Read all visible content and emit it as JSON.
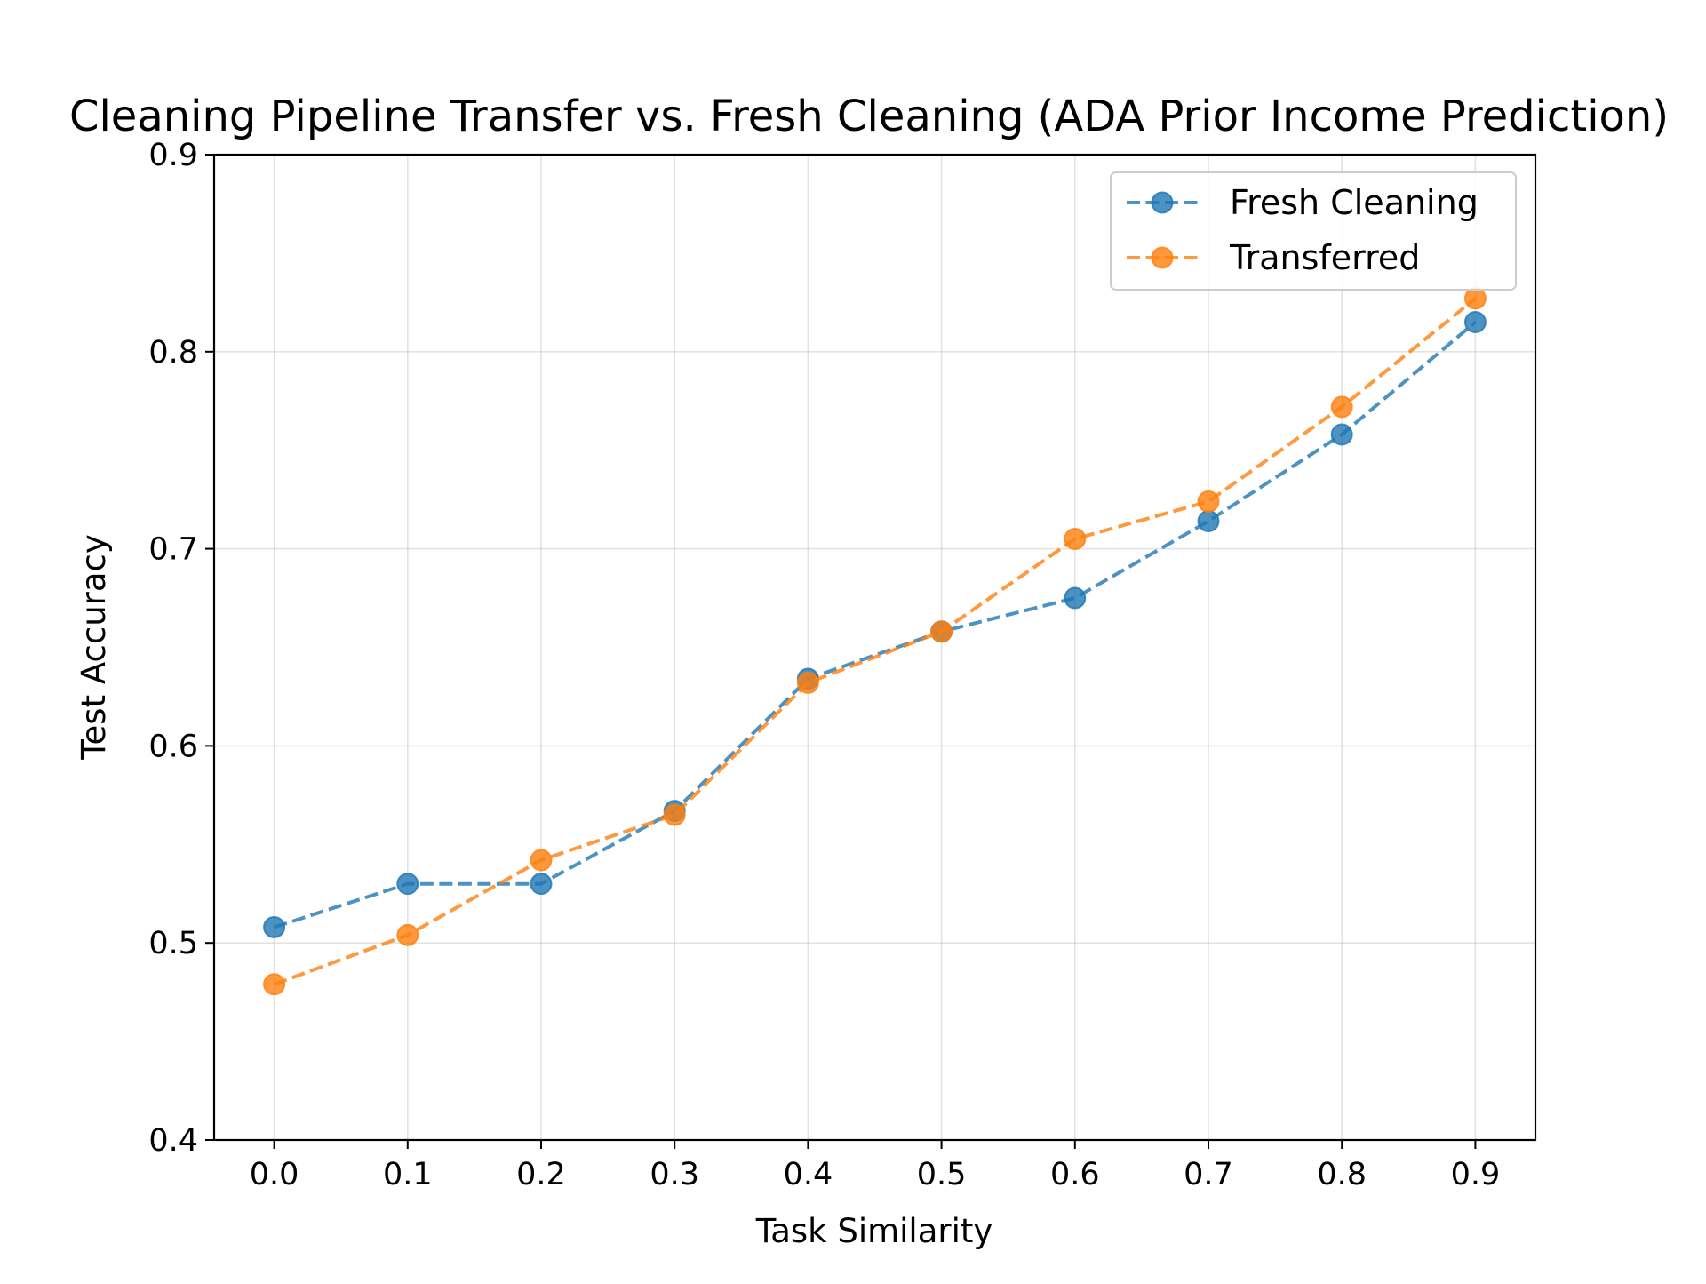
{
  "chart_data": {
    "type": "line",
    "title": "Cleaning Pipeline Transfer vs. Fresh Cleaning (ADA Prior Income Prediction)",
    "xlabel": "Task Similarity",
    "ylabel": "Test Accuracy",
    "x": [
      0.0,
      0.1,
      0.2,
      0.3,
      0.4,
      0.5,
      0.6,
      0.7,
      0.8,
      0.9
    ],
    "x_tick_labels": [
      "0.0",
      "0.1",
      "0.2",
      "0.3",
      "0.4",
      "0.5",
      "0.6",
      "0.7",
      "0.8",
      "0.9"
    ],
    "y_tick_labels": [
      "0.4",
      "0.5",
      "0.6",
      "0.7",
      "0.8",
      "0.9"
    ],
    "y_ticks": [
      0.4,
      0.5,
      0.6,
      0.7,
      0.8,
      0.9
    ],
    "xlim": [
      -0.045,
      0.945
    ],
    "ylim": [
      0.4,
      0.9
    ],
    "grid": true,
    "legend_position": "top-right",
    "series": [
      {
        "name": "Fresh Cleaning",
        "color": "#1f77b4",
        "line_style": "dashed",
        "marker": "circle",
        "values": [
          0.508,
          0.53,
          0.53,
          0.567,
          0.634,
          0.658,
          0.675,
          0.714,
          0.758,
          0.815
        ]
      },
      {
        "name": "Transferred",
        "color": "#ff7f0e",
        "line_style": "dashed",
        "marker": "circle",
        "values": [
          0.479,
          0.504,
          0.542,
          0.565,
          0.632,
          0.658,
          0.705,
          0.724,
          0.772,
          0.827
        ]
      }
    ]
  }
}
